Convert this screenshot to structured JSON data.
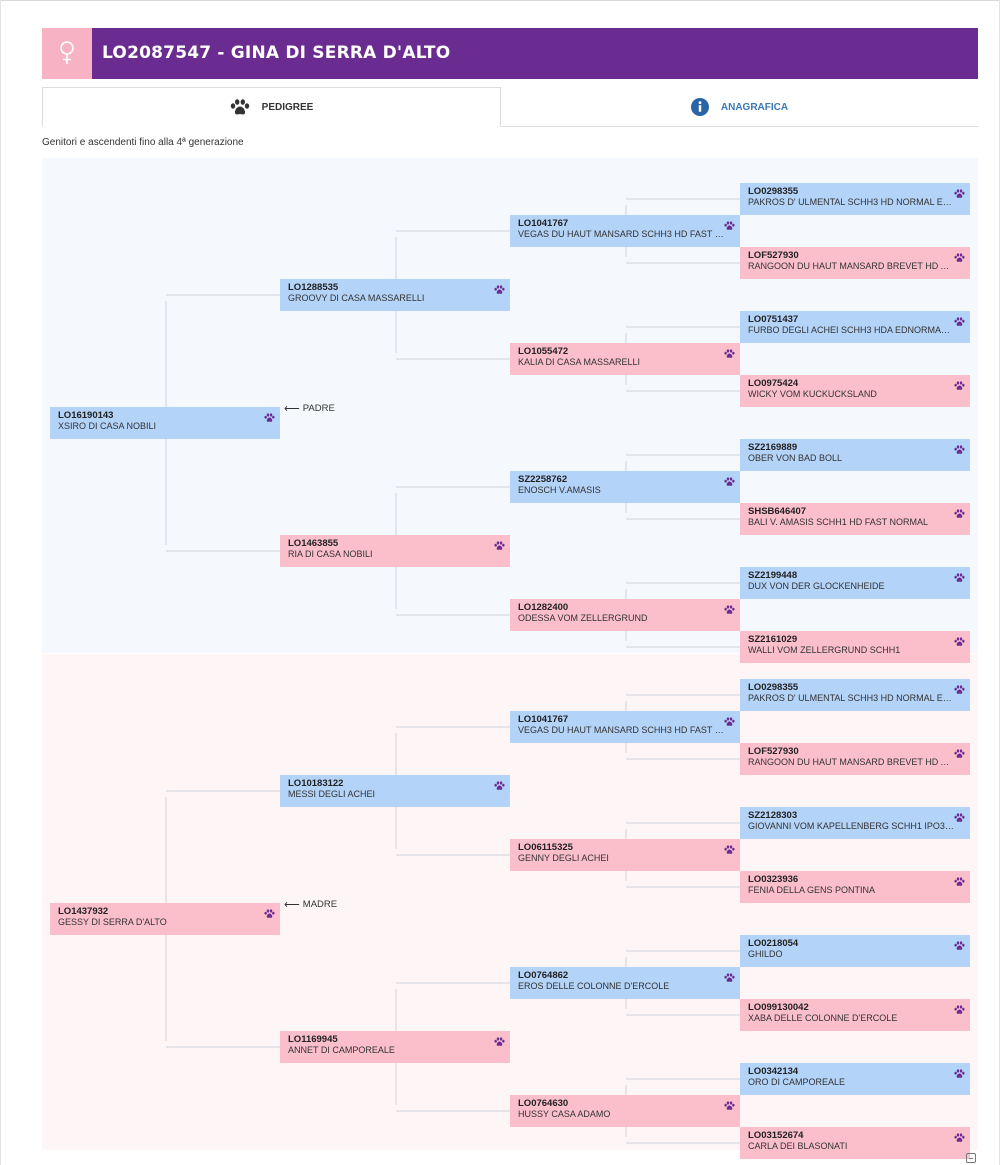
{
  "dog": {
    "title": "LO2087547 - GINA DI SERRA D'ALTO",
    "sex_icon": "female-symbol-icon"
  },
  "tabs": [
    {
      "label": "PEDIGREE",
      "icon": "paw-icon",
      "active": true
    },
    {
      "label": "ANAGRAFICA",
      "icon": "info-circle-icon",
      "active": false
    }
  ],
  "subtitle": "Genitori e ascendenti fino alla 4ª generazione",
  "roles": {
    "father": "PADRE",
    "mother": "MADRE"
  },
  "colors": {
    "header": "#6a2c91",
    "female_accent": "#f7b3c4",
    "male_box": "#b3d3f8",
    "female_box": "#fbbfcc",
    "paw": "#6a2c91",
    "tab_link": "#3a7ab5"
  },
  "pedigree": {
    "sire": {
      "code": "LO16190143",
      "name": "XSIRO DI CASA NOBILI",
      "sire": {
        "code": "LO1288535",
        "name": "GROOVY DI CASA MASSARELLI",
        "sire": {
          "code": "LO1041767",
          "name": "VEGAS DU HAUT MANSARD SCHH3 HD FAST N...",
          "sire": {
            "code": "LO0298355",
            "name": "PAKROS D' ULMENTAL SCHH3 HD NORMAL ED ..."
          },
          "dam": {
            "code": "LOF527930",
            "name": "RANGOON DU HAUT MANSARD BREVET HD AU..."
          }
        },
        "dam": {
          "code": "LO1055472",
          "name": "KALIA DI CASA MASSARELLI",
          "sire": {
            "code": "LO0751437",
            "name": "FURBO DEGLI ACHEI SCHH3 HDA EDNORMAL ..."
          },
          "dam": {
            "code": "LO0975424",
            "name": "WICKY VOM KUCKUCKSLAND"
          }
        }
      },
      "dam": {
        "code": "LO1463855",
        "name": "RIA DI CASA NOBILI",
        "sire": {
          "code": "SZ2258762",
          "name": "ENOSCH V.AMASIS",
          "sire": {
            "code": "SZ2169889",
            "name": "OBER VON BAD BOLL"
          },
          "dam": {
            "code": "SHSB646407",
            "name": "BALI V. AMASIS SCHH1 HD FAST NORMAL"
          }
        },
        "dam": {
          "code": "LO1282400",
          "name": "ODESSA VOM ZELLERGRUND",
          "sire": {
            "code": "SZ2199448",
            "name": "DUX VON DER GLOCKENHEIDE"
          },
          "dam": {
            "code": "SZ2161029",
            "name": "WALLI VOM ZELLERGRUND SCHH1"
          }
        }
      }
    },
    "dam": {
      "code": "LO1437932",
      "name": "GESSY DI SERRA D'ALTO",
      "sire": {
        "code": "LO10183122",
        "name": "MESSI DEGLI ACHEI",
        "sire": {
          "code": "LO1041767",
          "name": "VEGAS DU HAUT MANSARD SCHH3 HD FAST N...",
          "sire": {
            "code": "LO0298355",
            "name": "PAKROS D' ULMENTAL SCHH3 HD NORMAL ED ..."
          },
          "dam": {
            "code": "LOF527930",
            "name": "RANGOON DU HAUT MANSARD BREVET HD AU..."
          }
        },
        "dam": {
          "code": "LO06115325",
          "name": "GENNY DEGLI ACHEI",
          "sire": {
            "code": "SZ2128303",
            "name": "GIOVANNI VOM KAPELLENBERG SCHH1 IPO3 ..."
          },
          "dam": {
            "code": "LO0323936",
            "name": "FENIA DELLA GENS PONTINA"
          }
        }
      },
      "dam": {
        "code": "LO1169945",
        "name": "ANNET DI CAMPOREALE",
        "sire": {
          "code": "LO0764862",
          "name": "EROS DELLE COLONNE D'ERCOLE",
          "sire": {
            "code": "LO0218054",
            "name": "GHILDO"
          },
          "dam": {
            "code": "LO099130042",
            "name": "XABA DELLE COLONNE D'ERCOLE"
          }
        },
        "dam": {
          "code": "LO0764630",
          "name": "HUSSY CASA ADAMO",
          "sire": {
            "code": "LO0342134",
            "name": "ORO DI CAMPOREALE"
          },
          "dam": {
            "code": "LO03152674",
            "name": "CARLA DEI BLASONATI"
          }
        }
      }
    }
  },
  "collapse_icon": "collapse-minus-icon"
}
